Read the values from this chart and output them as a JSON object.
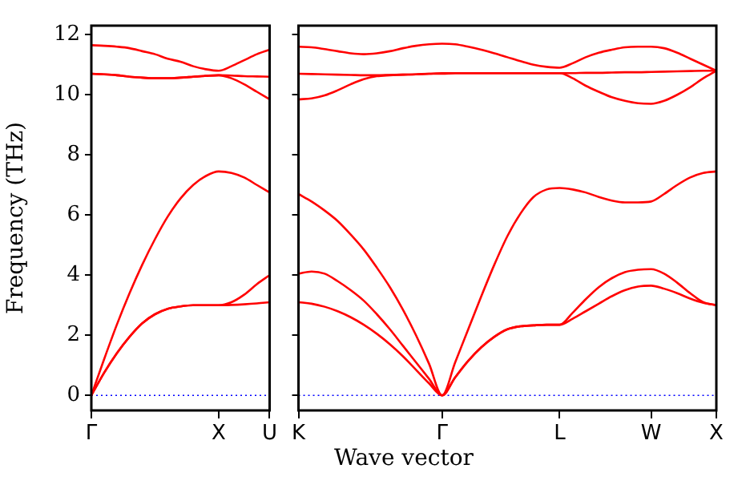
{
  "chart_data": [
    {
      "type": "line",
      "ylabel": "Frequency (THz)",
      "categories": [
        "Γ",
        null,
        null,
        null,
        null,
        null,
        null,
        null,
        null,
        null,
        "X",
        null,
        null,
        null,
        "U"
      ],
      "ylim": [
        -0.5,
        12.3
      ],
      "yticks": [
        0,
        2,
        4,
        6,
        8,
        10,
        12
      ],
      "grid": false,
      "ref_lines": [
        {
          "axis": "y",
          "value": 0,
          "color": "#0000ff",
          "line_style": "dotted"
        }
      ],
      "series": [
        {
          "color": "#ff0000",
          "values": [
            0,
            0.75,
            1.4,
            1.95,
            2.4,
            2.7,
            2.88,
            2.96,
            3,
            3,
            3,
            3.01,
            3.03,
            3.06,
            3.1
          ]
        },
        {
          "color": "#ff0000",
          "values": [
            0,
            0.75,
            1.4,
            1.95,
            2.4,
            2.7,
            2.88,
            2.96,
            3,
            3,
            3,
            3.1,
            3.35,
            3.7,
            4.0
          ]
        },
        {
          "color": "#ff0000",
          "values": [
            0,
            1.2,
            2.35,
            3.4,
            4.35,
            5.2,
            5.95,
            6.55,
            7.0,
            7.3,
            7.45,
            7.4,
            7.25,
            7.0,
            6.75
          ]
        },
        {
          "color": "#ff0000",
          "values": [
            10.7,
            10.68,
            10.65,
            10.6,
            10.57,
            10.55,
            10.55,
            10.57,
            10.6,
            10.63,
            10.65,
            10.55,
            10.35,
            10.1,
            9.85
          ]
        },
        {
          "color": "#ff0000",
          "values": [
            10.7,
            10.68,
            10.65,
            10.6,
            10.57,
            10.55,
            10.55,
            10.57,
            10.6,
            10.63,
            10.65,
            10.64,
            10.62,
            10.61,
            10.6
          ]
        },
        {
          "color": "#ff0000",
          "values": [
            11.65,
            11.63,
            11.6,
            11.55,
            11.45,
            11.35,
            11.2,
            11.1,
            10.95,
            10.85,
            10.8,
            10.95,
            11.15,
            11.35,
            11.5
          ]
        }
      ]
    },
    {
      "type": "line",
      "xlabel": "Wave vector",
      "categories": [
        "K",
        null,
        null,
        null,
        null,
        null,
        null,
        null,
        null,
        null,
        null,
        "Γ",
        null,
        null,
        null,
        null,
        null,
        null,
        null,
        null,
        "L",
        null,
        null,
        null,
        null,
        null,
        null,
        "W",
        null,
        null,
        null,
        null,
        "X"
      ],
      "ylim": [
        -0.5,
        12.3
      ],
      "yticks": [
        0,
        2,
        4,
        6,
        8,
        10,
        12
      ],
      "tick_labels": "x",
      "grid": false,
      "ref_lines": [
        {
          "axis": "y",
          "value": 0,
          "color": "#0000ff",
          "line_style": "dotted"
        }
      ],
      "series": [
        {
          "color": "#ff0000",
          "values": [
            3.1,
            3.05,
            2.95,
            2.8,
            2.6,
            2.35,
            2.05,
            1.7,
            1.3,
            0.85,
            0.4,
            0,
            0.6,
            1.15,
            1.6,
            1.95,
            2.2,
            2.3,
            2.33,
            2.35,
            2.35,
            2.55,
            2.8,
            3.05,
            3.3,
            3.5,
            3.62,
            3.65,
            3.55,
            3.4,
            3.22,
            3.08,
            3.0
          ]
        },
        {
          "color": "#ff0000",
          "values": [
            4.05,
            4.12,
            4.05,
            3.8,
            3.5,
            3.15,
            2.7,
            2.2,
            1.65,
            1.1,
            0.55,
            0,
            0.6,
            1.15,
            1.6,
            1.95,
            2.2,
            2.3,
            2.33,
            2.35,
            2.35,
            2.75,
            3.2,
            3.6,
            3.9,
            4.1,
            4.18,
            4.2,
            4.05,
            3.75,
            3.4,
            3.1,
            3.0
          ]
        },
        {
          "color": "#ff0000",
          "values": [
            6.7,
            6.45,
            6.15,
            5.8,
            5.35,
            4.85,
            4.25,
            3.6,
            2.85,
            2.0,
            1.05,
            0,
            1.1,
            2.2,
            3.3,
            4.35,
            5.3,
            6.05,
            6.6,
            6.85,
            6.9,
            6.85,
            6.75,
            6.6,
            6.48,
            6.42,
            6.42,
            6.45,
            6.7,
            7.0,
            7.25,
            7.4,
            7.45
          ]
        },
        {
          "color": "#ff0000",
          "values": [
            9.85,
            9.88,
            9.98,
            10.15,
            10.35,
            10.52,
            10.62,
            10.65,
            10.67,
            10.68,
            10.7,
            10.7,
            10.72,
            10.72,
            10.72,
            10.72,
            10.72,
            10.72,
            10.72,
            10.72,
            10.72,
            10.55,
            10.3,
            10.1,
            9.92,
            9.8,
            9.72,
            9.7,
            9.8,
            10.0,
            10.25,
            10.55,
            10.8
          ]
        },
        {
          "color": "#ff0000",
          "values": [
            10.7,
            10.69,
            10.68,
            10.67,
            10.66,
            10.65,
            10.65,
            10.66,
            10.67,
            10.68,
            10.7,
            10.72,
            10.72,
            10.72,
            10.72,
            10.72,
            10.72,
            10.72,
            10.72,
            10.72,
            10.72,
            10.72,
            10.73,
            10.73,
            10.74,
            10.75,
            10.75,
            10.76,
            10.77,
            10.78,
            10.79,
            10.8,
            10.8
          ]
        },
        {
          "color": "#ff0000",
          "values": [
            11.6,
            11.58,
            11.52,
            11.45,
            11.38,
            11.35,
            11.38,
            11.45,
            11.55,
            11.63,
            11.68,
            11.7,
            11.68,
            11.6,
            11.5,
            11.38,
            11.25,
            11.12,
            11.0,
            10.93,
            10.9,
            11.05,
            11.25,
            11.4,
            11.5,
            11.58,
            11.6,
            11.6,
            11.55,
            11.4,
            11.2,
            11.0,
            10.8
          ]
        }
      ]
    }
  ]
}
